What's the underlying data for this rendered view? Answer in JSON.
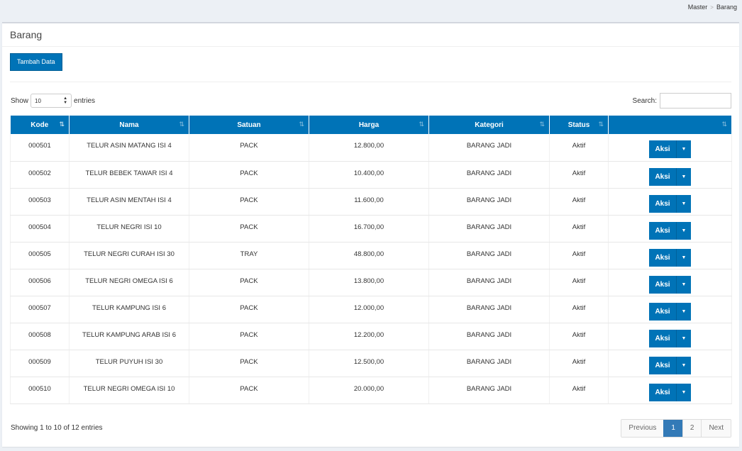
{
  "breadcrumb": {
    "items": [
      "Master",
      "Barang"
    ],
    "separator": ">"
  },
  "page": {
    "title": "Barang",
    "add_button": "Tambah Data"
  },
  "length": {
    "show_label": "Show",
    "value": "10",
    "entries_label": "entries"
  },
  "search": {
    "label": "Search:",
    "value": ""
  },
  "columns": [
    "Kode",
    "Nama",
    "Satuan",
    "Harga",
    "Kategori",
    "Status",
    ""
  ],
  "rows": [
    {
      "kode": "000501",
      "nama": "TELUR ASIN MATANG ISI 4",
      "satuan": "PACK",
      "harga": "12.800,00",
      "kategori": "BARANG JADI",
      "status": "Aktif"
    },
    {
      "kode": "000502",
      "nama": "TELUR BEBEK TAWAR ISI 4",
      "satuan": "PACK",
      "harga": "10.400,00",
      "kategori": "BARANG JADI",
      "status": "Aktif"
    },
    {
      "kode": "000503",
      "nama": "TELUR ASIN MENTAH ISI 4",
      "satuan": "PACK",
      "harga": "11.600,00",
      "kategori": "BARANG JADI",
      "status": "Aktif"
    },
    {
      "kode": "000504",
      "nama": "TELUR NEGRI ISI 10",
      "satuan": "PACK",
      "harga": "16.700,00",
      "kategori": "BARANG JADI",
      "status": "Aktif"
    },
    {
      "kode": "000505",
      "nama": "TELUR NEGRI CURAH ISI 30",
      "satuan": "TRAY",
      "harga": "48.800,00",
      "kategori": "BARANG JADI",
      "status": "Aktif"
    },
    {
      "kode": "000506",
      "nama": "TELUR NEGRI OMEGA ISI 6",
      "satuan": "PACK",
      "harga": "13.800,00",
      "kategori": "BARANG JADI",
      "status": "Aktif"
    },
    {
      "kode": "000507",
      "nama": "TELUR KAMPUNG ISI 6",
      "satuan": "PACK",
      "harga": "12.000,00",
      "kategori": "BARANG JADI",
      "status": "Aktif"
    },
    {
      "kode": "000508",
      "nama": "TELUR KAMPUNG ARAB ISI 6",
      "satuan": "PACK",
      "harga": "12.200,00",
      "kategori": "BARANG JADI",
      "status": "Aktif"
    },
    {
      "kode": "000509",
      "nama": "TELUR PUYUH ISI 30",
      "satuan": "PACK",
      "harga": "12.500,00",
      "kategori": "BARANG JADI",
      "status": "Aktif"
    },
    {
      "kode": "000510",
      "nama": "TELUR NEGRI OMEGA ISI 10",
      "satuan": "PACK",
      "harga": "20.000,00",
      "kategori": "BARANG JADI",
      "status": "Aktif"
    }
  ],
  "action_label": "Aksi",
  "info": "Showing 1 to 10 of 12 entries",
  "pagination": {
    "previous": "Previous",
    "pages": [
      "1",
      "2"
    ],
    "current": "1",
    "next": "Next"
  },
  "colors": {
    "primary": "#0073b7",
    "page_bg": "#ecf0f5",
    "active_page": "#337ab7"
  },
  "icons": {
    "sort": "sort-icon",
    "sort_active": "sort-ascending-icon",
    "caret": "caret-down-icon"
  }
}
